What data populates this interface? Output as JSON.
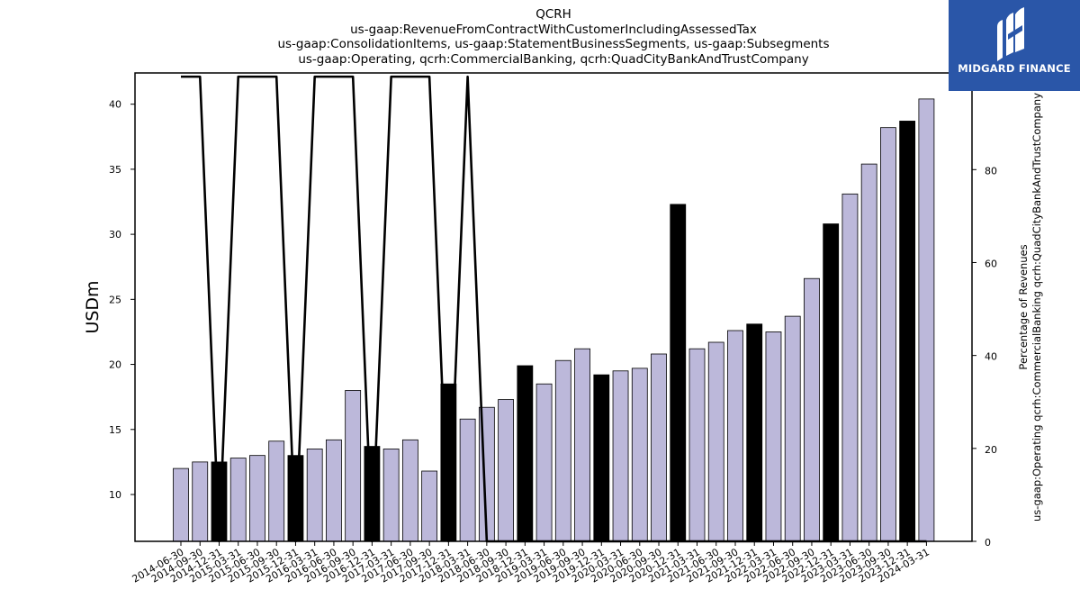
{
  "chart_data": {
    "type": "bar",
    "title_lines": [
      "QCRH",
      "us-gaap:RevenueFromContractWithCustomerIncludingAssessedTax",
      "us-gaap:ConsolidationItems, us-gaap:StatementBusinessSegments, us-gaap:Subsegments",
      "us-gaap:Operating, qcrh:CommercialBanking, qcrh:QuadCityBankAndTrustCompany"
    ],
    "ylabel": "USDm",
    "y2label_lines": [
      "Percentage of Revenues",
      "us-gaap:Operating qcrh:CommercialBanking qcrh:QuadCityBankAndTrustCompany"
    ],
    "ylim": [
      6.4,
      42.4
    ],
    "y2lim": [
      0,
      100.8
    ],
    "yticks": [
      10,
      15,
      20,
      25,
      30,
      35,
      40
    ],
    "y2ticks": [
      0,
      20,
      40,
      60,
      80,
      100
    ],
    "categories": [
      "2014-06-30",
      "2014-09-30",
      "2014-12-31",
      "2015-03-31",
      "2015-06-30",
      "2015-09-30",
      "2015-12-31",
      "2016-03-31",
      "2016-06-30",
      "2016-09-30",
      "2016-12-31",
      "2017-03-31",
      "2017-06-30",
      "2017-09-30",
      "2017-12-31",
      "2018-03-31",
      "2018-06-30",
      "2018-09-30",
      "2018-12-31",
      "2019-03-31",
      "2019-06-30",
      "2019-09-30",
      "2019-12-31",
      "2020-03-31",
      "2020-06-30",
      "2020-09-30",
      "2020-12-31",
      "2021-03-31",
      "2021-06-30",
      "2021-09-30",
      "2021-12-31",
      "2022-03-31",
      "2022-06-30",
      "2022-09-30",
      "2022-12-31",
      "2023-03-31",
      "2023-06-30",
      "2023-09-30",
      "2023-12-31",
      "2024-03-31"
    ],
    "series": [
      {
        "values": [
          12.0,
          12.5,
          12.5,
          12.8,
          13.0,
          14.1,
          13.0,
          13.5,
          14.2,
          18.0,
          13.7,
          13.5,
          14.2,
          11.8,
          18.5,
          15.8,
          16.7,
          17.3,
          19.9,
          18.5,
          20.3,
          21.2,
          19.2,
          19.5,
          19.7,
          20.8,
          32.3,
          21.2,
          21.7,
          22.6,
          23.1,
          22.5,
          23.7,
          26.6,
          30.8,
          33.1,
          35.4,
          38.2,
          38.7,
          40.4
        ]
      },
      {
        "type": "line",
        "axis": "right",
        "values": [
          100,
          100,
          0,
          100,
          100,
          100,
          0,
          100,
          100,
          100,
          0,
          100,
          100,
          100,
          0,
          100,
          0,
          0,
          0,
          0,
          0,
          0,
          0,
          0,
          0,
          0,
          0,
          0,
          0,
          0,
          0,
          0,
          0,
          0,
          0,
          0,
          0,
          0,
          0,
          0
        ]
      }
    ],
    "highlight_indices": [
      2,
      6,
      10,
      14,
      18,
      22,
      26,
      30,
      34,
      38
    ],
    "colors": {
      "bar": "#bcb8da",
      "bar_highlight": "#000000",
      "line": "#000000"
    },
    "grid": false
  },
  "logo": {
    "text": "MIDGARD FINANCE",
    "bg": "#2a56a8"
  }
}
